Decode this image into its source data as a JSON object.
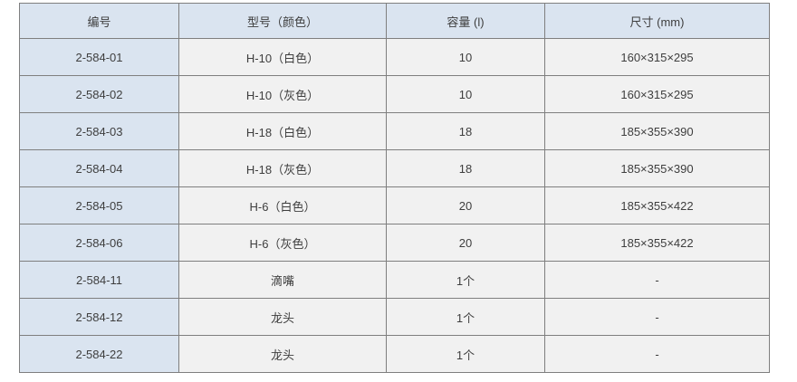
{
  "page": {
    "background": "#ffffff"
  },
  "colors": {
    "header_bg": "#dae4f0",
    "row_label_bg": "#dae4f0",
    "cell_bg": "#f1f1f1",
    "border": "#7f7f7f",
    "text": "#3e3e3e"
  },
  "table": {
    "headers": [
      "编号",
      "型号（颜色）",
      "容量 (l)",
      "尺寸 (mm)"
    ],
    "column_keys": [
      "code",
      "model-color",
      "capacity",
      "dimensions"
    ],
    "rows": [
      [
        "2-584-01",
        "H-10（白色）",
        "10",
        "160×315×295"
      ],
      [
        "2-584-02",
        "H-10（灰色）",
        "10",
        "160×315×295"
      ],
      [
        "2-584-03",
        "H-18（白色）",
        "18",
        "185×355×390"
      ],
      [
        "2-584-04",
        "H-18（灰色）",
        "18",
        "185×355×390"
      ],
      [
        "2-584-05",
        "H-6（白色）",
        "20",
        "185×355×422"
      ],
      [
        "2-584-06",
        "H-6（灰色）",
        "20",
        "185×355×422"
      ],
      [
        "2-584-11",
        "滴嘴",
        "1个",
        "-"
      ],
      [
        "2-584-12",
        "龙头",
        "1个",
        "-"
      ],
      [
        "2-584-22",
        "龙头",
        "1个",
        "-"
      ]
    ]
  },
  "chart_data": {
    "type": "table",
    "title": "",
    "columns": [
      "编号",
      "型号（颜色）",
      "容量 (l)",
      "尺寸 (mm)"
    ],
    "rows": [
      [
        "2-584-01",
        "H-10（白色）",
        "10",
        "160×315×295"
      ],
      [
        "2-584-02",
        "H-10（灰色）",
        "10",
        "160×315×295"
      ],
      [
        "2-584-03",
        "H-18（白色）",
        "18",
        "185×355×390"
      ],
      [
        "2-584-04",
        "H-18（灰色）",
        "18",
        "185×355×390"
      ],
      [
        "2-584-05",
        "H-6（白色）",
        "20",
        "185×355×422"
      ],
      [
        "2-584-06",
        "H-6（灰色）",
        "20",
        "185×355×422"
      ],
      [
        "2-584-11",
        "滴嘴",
        "1个",
        "-"
      ],
      [
        "2-584-12",
        "龙头",
        "1个",
        "-"
      ],
      [
        "2-584-22",
        "龙头",
        "1个",
        "-"
      ]
    ],
    "layout_hints": {
      "header_background": "#dae4f0",
      "first_column_background": "#dae4f0",
      "body_background": "#f1f1f1",
      "grid": true
    }
  }
}
